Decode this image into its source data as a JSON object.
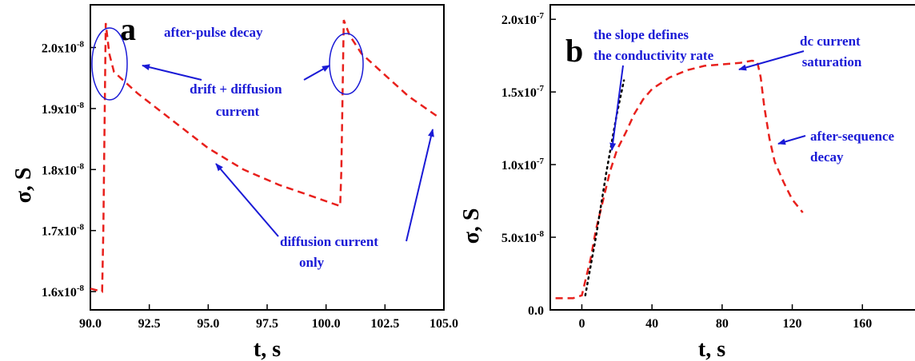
{
  "colors": {
    "curve": "#e8201c",
    "annotation": "#1a1ad6",
    "slope": "#000000",
    "axis": "#000000"
  },
  "chart_data": [
    {
      "type": "line",
      "panel_label": "a",
      "xlabel": "t, s",
      "ylabel": "σ, S",
      "xlim": [
        90,
        105
      ],
      "ylim": [
        1.57e-08,
        2.07e-08
      ],
      "x_ticks": [
        90.0,
        92.5,
        95.0,
        97.5,
        100.0,
        102.5,
        105.0
      ],
      "x_tick_labels": [
        "90.0",
        "92.5",
        "95.0",
        "97.5",
        "100.0",
        "102.5",
        "105.0"
      ],
      "y_ticks": [
        1.6e-08,
        1.7e-08,
        1.8e-08,
        1.9e-08,
        2e-08
      ],
      "y_tick_labels": [
        {
          "base": "1.6x10",
          "exp": "-8"
        },
        {
          "base": "1.7x10",
          "exp": "-8"
        },
        {
          "base": "1.8x10",
          "exp": "-8"
        },
        {
          "base": "1.9x10",
          "exp": "-8"
        },
        {
          "base": "2.0x10",
          "exp": "-8"
        }
      ],
      "series": [
        {
          "style": "dashed",
          "x": [
            90.0,
            90.5,
            90.55,
            90.65,
            90.8,
            91.0,
            92.0,
            93.5,
            95.0,
            96.5,
            98.0,
            99.5,
            100.6,
            100.65,
            100.75,
            101.0,
            101.5,
            102.5,
            103.5,
            104.8
          ],
          "y": [
            1.605e-08,
            1.6e-08,
            1.7e-08,
            2.04e-08,
            1.99e-08,
            1.96e-08,
            1.925e-08,
            1.88e-08,
            1.835e-08,
            1.8e-08,
            1.775e-08,
            1.755e-08,
            1.74e-08,
            1.8e-08,
            2.045e-08,
            2.02e-08,
            1.99e-08,
            1.955e-08,
            1.92e-08,
            1.885e-08
          ]
        }
      ],
      "annotations": [
        {
          "lines": [
            "after-pulse decay"
          ]
        },
        {
          "lines": [
            "drift + diffusion",
            "current"
          ]
        },
        {
          "lines": [
            "diffusion current",
            "only"
          ]
        }
      ]
    },
    {
      "type": "line",
      "panel_label": "b",
      "xlabel": "t, s",
      "ylabel": "σ, S",
      "xlim": [
        -18,
        190
      ],
      "ylim": [
        0,
        2.1e-07
      ],
      "x_ticks": [
        0,
        40,
        80,
        120,
        160
      ],
      "x_tick_labels": [
        "0",
        "40",
        "80",
        "120",
        "160"
      ],
      "y_ticks": [
        0,
        5e-08,
        1e-07,
        1.5e-07,
        2e-07
      ],
      "y_tick_labels": [
        {
          "base": "0.0",
          "exp": ""
        },
        {
          "base": "5.0x10",
          "exp": "-8"
        },
        {
          "base": "1.0x10",
          "exp": "-7"
        },
        {
          "base": "1.5x10",
          "exp": "-7"
        },
        {
          "base": "2.0x10",
          "exp": "-7"
        }
      ],
      "series": [
        {
          "style": "dashed",
          "x": [
            -15,
            -5,
            0,
            2,
            5,
            8,
            12,
            16,
            20,
            25,
            30,
            35,
            40,
            50,
            60,
            70,
            80,
            90,
            97,
            100,
            102,
            104,
            107,
            110,
            115,
            120,
            126
          ],
          "y": [
            8e-09,
            8e-09,
            1e-08,
            2e-08,
            3.5e-08,
            5.5e-08,
            7.5e-08,
            9.5e-08,
            1.1e-07,
            1.22e-07,
            1.35e-07,
            1.45e-07,
            1.52e-07,
            1.6e-07,
            1.65e-07,
            1.68e-07,
            1.69e-07,
            1.7e-07,
            1.715e-07,
            1.71e-07,
            1.6e-07,
            1.4e-07,
            1.18e-07,
            1.02e-07,
            8.8e-08,
            7.6e-08,
            6.7e-08
          ]
        },
        {
          "style": "dotted",
          "x": [
            2,
            8,
            14,
            20,
            24
          ],
          "y": [
            1e-08,
            5e-08,
            9.5e-08,
            1.35e-07,
            1.58e-07
          ]
        }
      ],
      "annotations": [
        {
          "lines": [
            "the slope defines",
            "the conductivity rate"
          ]
        },
        {
          "lines": [
            "dc current",
            "saturation"
          ]
        },
        {
          "lines": [
            "after-sequence",
            "decay"
          ]
        }
      ]
    }
  ]
}
